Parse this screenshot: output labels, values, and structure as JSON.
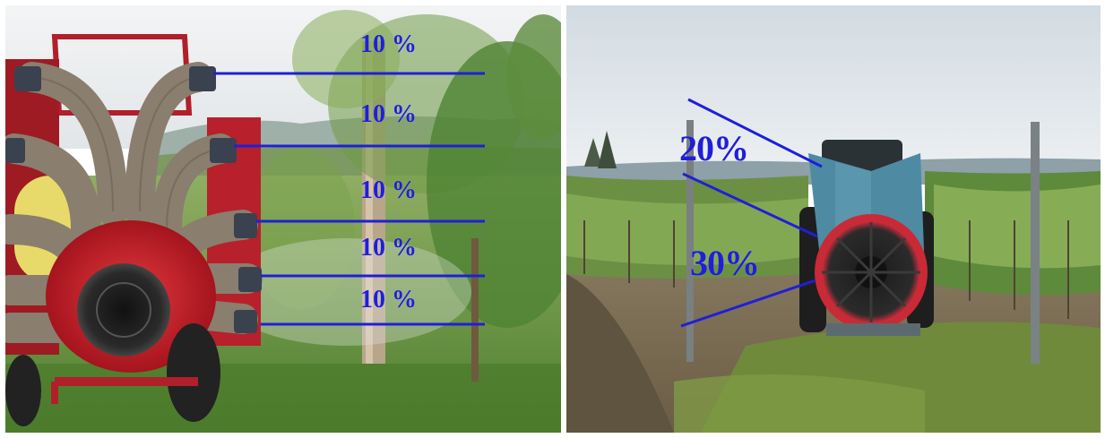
{
  "left_panel": {
    "labels": [
      "10 %",
      "10 %",
      "10 %",
      "10 %",
      "10 %"
    ]
  },
  "right_panel": {
    "labels": [
      "20%",
      "30%"
    ]
  },
  "colors": {
    "annotation_blue": "#1f1fd8",
    "sprayer_red": "#c8202a",
    "sprayer_teal": "#4f8aa3",
    "grass_green": "#5f8b3a",
    "sky": "#e4e9ee"
  }
}
